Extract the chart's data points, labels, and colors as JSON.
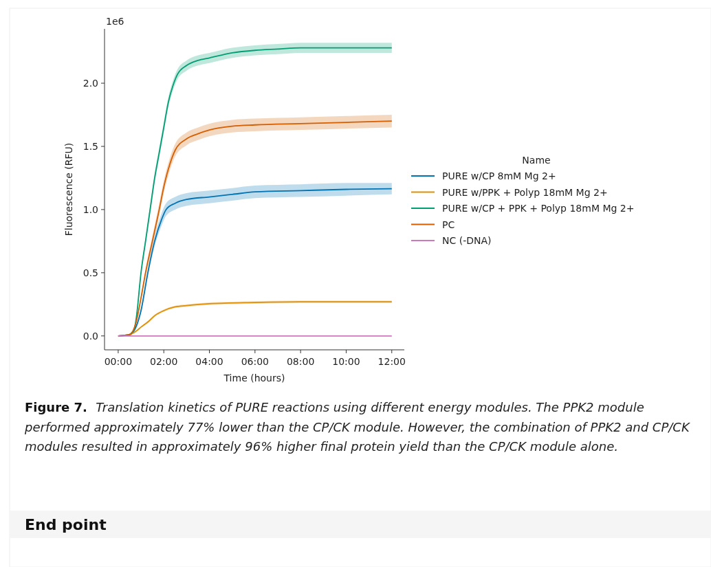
{
  "chart_data": {
    "type": "line",
    "xlabel": "Time (hours)",
    "ylabel": "Fluorescence (RFU)",
    "legend_title": "Name",
    "legend": "right",
    "grid": false,
    "xlim": [
      -0.6,
      12.55
    ],
    "ylim": [
      -0.11,
      2.43
    ],
    "xticks": [
      {
        "value": 0,
        "label": "00:00"
      },
      {
        "value": 2,
        "label": "02:00"
      },
      {
        "value": 4,
        "label": "04:00"
      },
      {
        "value": 6,
        "label": "06:00"
      },
      {
        "value": 8,
        "label": "08:00"
      },
      {
        "value": 10,
        "label": "10:00"
      },
      {
        "value": 12,
        "label": "12:00"
      }
    ],
    "yticks": [
      {
        "value": 0,
        "label": "0.0"
      },
      {
        "value": 0.5,
        "label": "0.5"
      },
      {
        "value": 1,
        "label": "1.0"
      },
      {
        "value": 1.5,
        "label": "1.5"
      },
      {
        "value": 2,
        "label": "2.0"
      }
    ],
    "annotations": [
      "1e6",
      "Figure 7.",
      "Translation kinetics of PURE reactions using different energy modules. The PPK2 module performed approximately 77% lower than the CP/CK module. However, the combination of PPK2 and CP/CK modules resulted in approximately 96% higher final protein yield than the CP/CK module alone.",
      "End point"
    ],
    "series": [
      {
        "name": "PURE w/CP 8mM Mg 2+",
        "color": "#0173b2",
        "x": [
          0,
          0.5,
          0.8,
          1,
          1.3,
          1.6,
          1.9,
          2.1,
          2.5,
          3,
          4,
          5,
          6,
          8,
          10,
          12
        ],
        "values": [
          0,
          0.01,
          0.08,
          0.2,
          0.5,
          0.75,
          0.92,
          1,
          1.05,
          1.08,
          1.1,
          1.12,
          1.14,
          1.15,
          1.16,
          1.165
        ],
        "lower": [
          0,
          0.01,
          0.07,
          0.18,
          0.47,
          0.71,
          0.87,
          0.95,
          1,
          1.03,
          1.05,
          1.07,
          1.09,
          1.1,
          1.11,
          1.12
        ],
        "upper": [
          0,
          0.01,
          0.09,
          0.22,
          0.53,
          0.79,
          0.97,
          1.05,
          1.1,
          1.13,
          1.15,
          1.17,
          1.19,
          1.2,
          1.21,
          1.21
        ]
      },
      {
        "name": "PURE w/PPK + Polyp 18mM Mg 2+",
        "color": "#de8f05",
        "x": [
          0,
          0.5,
          0.8,
          1,
          1.3,
          1.6,
          2,
          2.5,
          3,
          4,
          6,
          8,
          12
        ],
        "values": [
          0,
          0.01,
          0.04,
          0.07,
          0.11,
          0.16,
          0.2,
          0.23,
          0.24,
          0.255,
          0.265,
          0.27,
          0.27
        ],
        "lower": [
          0,
          0.01,
          0.035,
          0.065,
          0.1,
          0.15,
          0.19,
          0.22,
          0.23,
          0.245,
          0.255,
          0.26,
          0.26
        ],
        "upper": [
          0,
          0.01,
          0.045,
          0.075,
          0.12,
          0.17,
          0.21,
          0.24,
          0.25,
          0.265,
          0.275,
          0.28,
          0.28
        ]
      },
      {
        "name": "PURE w/CP + PPK + Polyp 18mM Mg 2+",
        "color": "#029e73",
        "x": [
          0,
          0.4,
          0.7,
          0.8,
          1,
          1.2,
          1.4,
          1.6,
          1.8,
          2,
          2.2,
          2.4,
          2.6,
          3,
          3.5,
          4,
          5,
          6,
          7,
          8,
          10,
          12
        ],
        "values": [
          0,
          0.005,
          0.05,
          0.15,
          0.5,
          0.75,
          1,
          1.25,
          1.45,
          1.65,
          1.85,
          1.98,
          2.07,
          2.14,
          2.18,
          2.2,
          2.24,
          2.26,
          2.27,
          2.28,
          2.28,
          2.28
        ],
        "lower": [
          0,
          0.005,
          0.045,
          0.14,
          0.48,
          0.72,
          0.96,
          1.21,
          1.41,
          1.61,
          1.81,
          1.94,
          2.03,
          2.1,
          2.14,
          2.16,
          2.2,
          2.22,
          2.23,
          2.24,
          2.24,
          2.24
        ],
        "upper": [
          0,
          0.005,
          0.055,
          0.16,
          0.52,
          0.78,
          1.04,
          1.29,
          1.49,
          1.69,
          1.89,
          2.02,
          2.11,
          2.18,
          2.22,
          2.24,
          2.28,
          2.3,
          2.31,
          2.32,
          2.32,
          2.32
        ]
      },
      {
        "name": "PC",
        "color": "#d55e00",
        "x": [
          0,
          0.5,
          0.8,
          1,
          1.2,
          1.5,
          1.8,
          2,
          2.2,
          2.5,
          3,
          3.5,
          4,
          5,
          6,
          8,
          10,
          12
        ],
        "values": [
          0,
          0.01,
          0.12,
          0.3,
          0.5,
          0.75,
          1,
          1.18,
          1.32,
          1.47,
          1.56,
          1.6,
          1.63,
          1.66,
          1.67,
          1.68,
          1.69,
          1.7
        ],
        "lower": [
          0,
          0.01,
          0.11,
          0.28,
          0.47,
          0.71,
          0.95,
          1.13,
          1.27,
          1.42,
          1.51,
          1.55,
          1.58,
          1.61,
          1.62,
          1.63,
          1.64,
          1.65
        ],
        "upper": [
          0,
          0.01,
          0.13,
          0.32,
          0.53,
          0.79,
          1.05,
          1.23,
          1.37,
          1.52,
          1.61,
          1.65,
          1.68,
          1.71,
          1.72,
          1.73,
          1.74,
          1.75
        ]
      },
      {
        "name": "NC (-DNA)",
        "color": "#cc78bc",
        "x": [
          0,
          12
        ],
        "values": [
          0,
          0
        ]
      }
    ]
  }
}
